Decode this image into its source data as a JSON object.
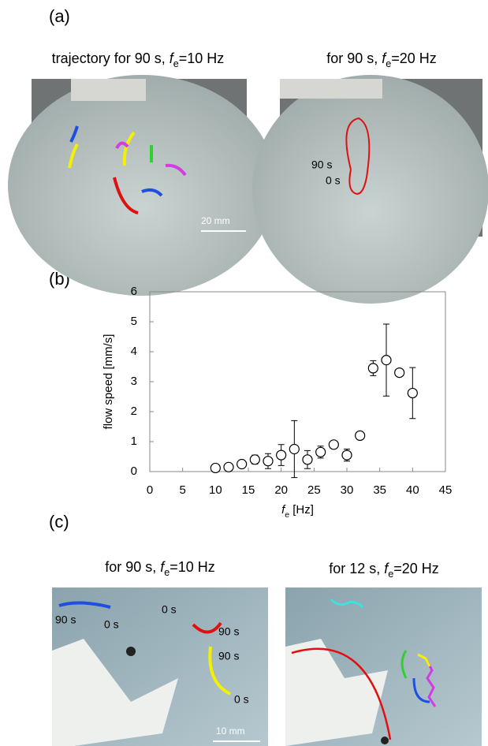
{
  "panel_labels": [
    "(a)",
    "(b)",
    "(c)"
  ],
  "panel_a": {
    "captions": [
      {
        "prefix": "trajectory for 90 s, ",
        "symbol": "f",
        "subscript": "e",
        "suffix": "=10 Hz"
      },
      {
        "prefix": "for 90 s, ",
        "symbol": "f",
        "subscript": "e",
        "suffix": "=20 Hz"
      }
    ],
    "scale_bar": "20 mm",
    "end_label": "90 s",
    "start_label": "0 s"
  },
  "chart_data": {
    "type": "scatter",
    "x": [
      10,
      12,
      14,
      16,
      18,
      20,
      22,
      24,
      26,
      28,
      30,
      32,
      34,
      36,
      38,
      40
    ],
    "values": [
      0.12,
      0.15,
      0.25,
      0.4,
      0.35,
      0.55,
      0.75,
      0.4,
      0.65,
      0.9,
      0.55,
      1.2,
      3.45,
      3.72,
      3.3,
      2.62
    ],
    "errors": [
      0.05,
      0.05,
      0.1,
      0.15,
      0.25,
      0.35,
      0.95,
      0.3,
      0.2,
      0.1,
      0.2,
      0.05,
      0.25,
      1.2,
      0.05,
      0.85
    ],
    "marker_color": "#000000",
    "xlim": [
      0,
      45
    ],
    "ylim": [
      0,
      6
    ],
    "xticks": [
      0,
      5,
      10,
      15,
      20,
      25,
      30,
      35,
      40,
      45
    ],
    "yticks": [
      0,
      1,
      2,
      3,
      4,
      5,
      6
    ],
    "x_label": {
      "symbol": "f",
      "subscript": "e",
      "suffix": " [Hz]"
    },
    "y_label": "flow speed [mm/s]"
  },
  "panel_c": {
    "captions": [
      {
        "prefix": "for 90 s, ",
        "symbol": "f",
        "subscript": "e",
        "suffix": "=10 Hz"
      },
      {
        "prefix": "for 12 s, ",
        "symbol": "f",
        "subscript": "e",
        "suffix": "=20 Hz"
      }
    ],
    "scale_bar": "10 mm",
    "labels": [
      "90 s",
      "0 s",
      "0 s",
      "90 s",
      "90 s",
      "0 s"
    ]
  }
}
